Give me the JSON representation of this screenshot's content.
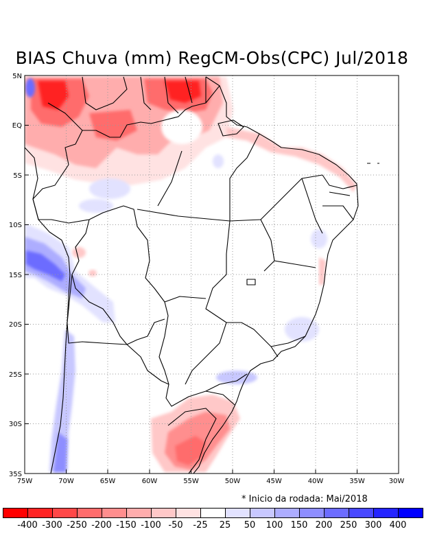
{
  "title": "BIAS Chuva (mm) RegCM-Obs(CPC) Jul/2018",
  "footnote": "* Inicio da rodada: Mai/2018",
  "colors": {
    "neg": [
      "#ff0000",
      "#ff2424",
      "#ff4848",
      "#ff6c6c",
      "#ff8e8e",
      "#ffadad",
      "#ffc8c8",
      "#ffe2e2"
    ],
    "zero": "#ffffff",
    "pos": [
      "#e2e2ff",
      "#c8c8ff",
      "#adadff",
      "#8e8eff",
      "#6c6cff",
      "#4848ff",
      "#2424ff",
      "#0000ff"
    ]
  },
  "scale_labels": [
    "-400",
    "-300",
    "-250",
    "-200",
    "-150",
    "-100",
    "-50",
    "-25",
    "25",
    "50",
    "100",
    "150",
    "200",
    "250",
    "300",
    "400"
  ],
  "lat_ticks": [
    "5N",
    "EQ",
    "5S",
    "10S",
    "15S",
    "20S",
    "25S",
    "30S",
    "35S"
  ],
  "lon_ticks": [
    "75W",
    "70W",
    "65W",
    "60W",
    "55W",
    "50W",
    "45W",
    "40W",
    "35W",
    "30W"
  ]
}
